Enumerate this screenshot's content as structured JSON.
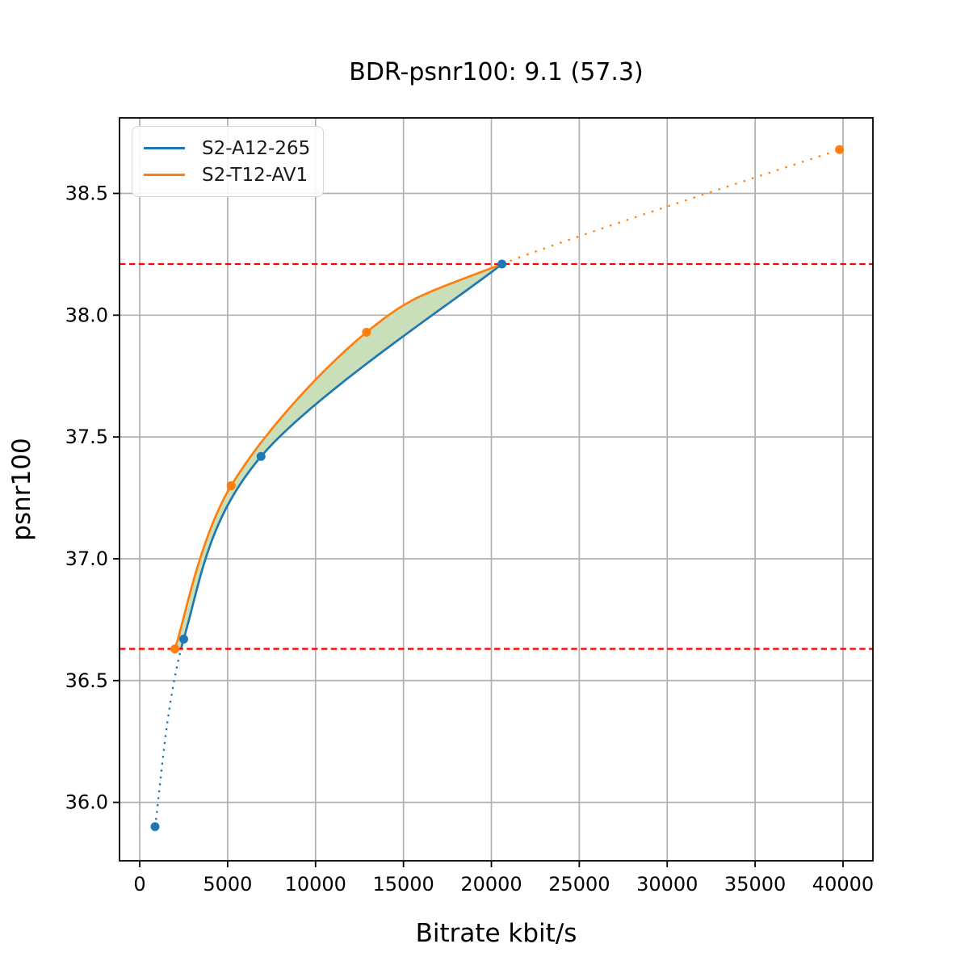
{
  "title": {
    "text": "BDR-psnr100: 9.1 (57.3)"
  },
  "axes": {
    "xlabel": "Bitrate kbit/s",
    "ylabel": "psnr100"
  },
  "legend": {
    "position": "upper left",
    "items": [
      {
        "label": "S2-A12-265",
        "color": "#1f77b4"
      },
      {
        "label": "S2-T12-AV1",
        "color": "#ff7f0e"
      }
    ]
  },
  "chart_data": {
    "type": "line",
    "title": "BDR-psnr100: 9.1 (57.3)",
    "xlabel": "Bitrate kbit/s",
    "ylabel": "psnr100",
    "xlim": [
      -1150,
      41700
    ],
    "ylim": [
      35.76,
      38.81
    ],
    "xticks": [
      0,
      5000,
      10000,
      15000,
      20000,
      25000,
      30000,
      35000,
      40000
    ],
    "xtick_labels": [
      "0",
      "5000",
      "10000",
      "15000",
      "20000",
      "25000",
      "30000",
      "35000",
      "40000"
    ],
    "yticks": [
      36.0,
      36.5,
      37.0,
      37.5,
      38.0,
      38.5
    ],
    "ytick_labels": [
      "36.0",
      "36.5",
      "37.0",
      "37.5",
      "38.0",
      "38.5"
    ],
    "grid": true,
    "grid_color": "#b0b0b0",
    "series": [
      {
        "name": "S2-A12-265",
        "color": "#1f77b4",
        "marker": "circle",
        "points": [
          [
            870,
            35.9
          ],
          [
            2500,
            36.67
          ],
          [
            6900,
            37.42
          ],
          [
            20600,
            38.21
          ]
        ],
        "style_outside_overlap": "dotted"
      },
      {
        "name": "S2-T12-AV1",
        "color": "#ff7f0e",
        "marker": "circle",
        "points": [
          [
            2000,
            36.63
          ],
          [
            5200,
            37.3
          ],
          [
            12900,
            37.93
          ],
          [
            39800,
            38.68
          ]
        ],
        "style_outside_overlap": "dotted"
      }
    ],
    "curves_converge_at": [
      20600,
      38.21
    ],
    "overlap_interval_psnr": [
      36.63,
      38.21
    ],
    "hlines": [
      {
        "y": 38.21,
        "color": "#ff0000",
        "style": "dashed"
      },
      {
        "y": 36.63,
        "color": "#ff0000",
        "style": "dashed"
      }
    ],
    "fill_between": {
      "color": "#c8dfba",
      "description": "shaded area between the two rate-distortion curves inside the overlap interval"
    }
  }
}
